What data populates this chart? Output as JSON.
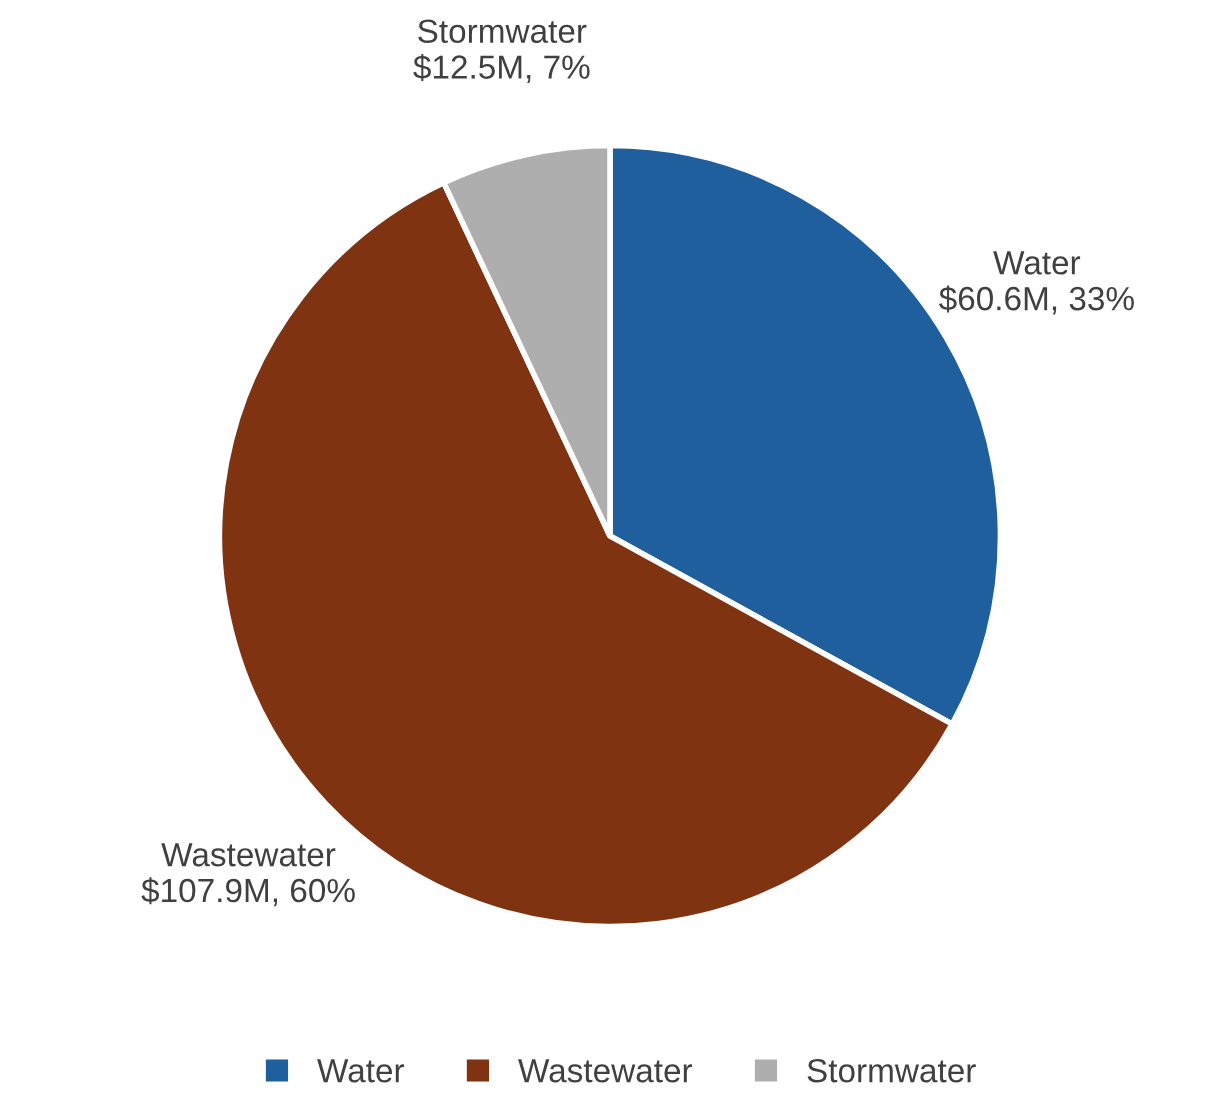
{
  "chart_data": {
    "type": "pie",
    "categories": [
      "Water",
      "Wastewater",
      "Stormwater"
    ],
    "values": [
      33,
      60,
      7
    ],
    "annotations": [
      "$60.6M, 33%",
      "$107.9M, 60%",
      "$12.5M, 7%"
    ],
    "colors": [
      "#1f5f9e",
      "#7f3310",
      "#aeaeae"
    ],
    "legend": "bottom"
  }
}
